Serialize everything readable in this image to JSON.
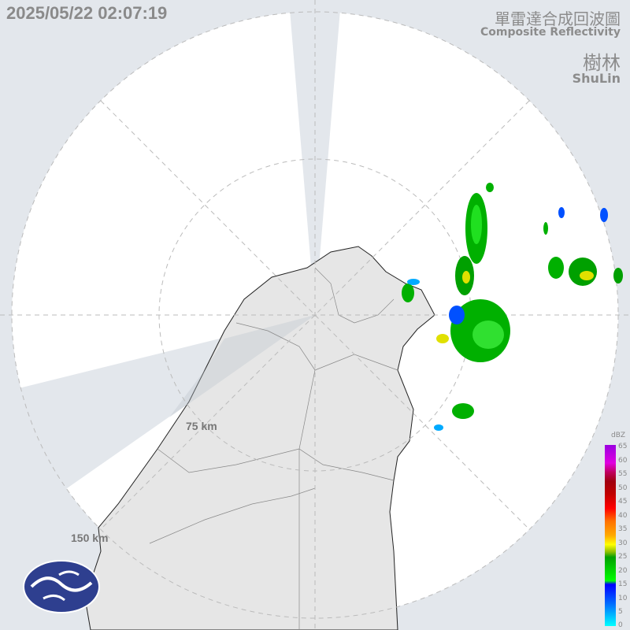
{
  "header": {
    "timestamp": "2025/05/22 02:07:19",
    "product_zh": "單雷達合成回波圖",
    "product_en": "Composite Reflectivity",
    "station_zh": "樹林",
    "station_en": "ShuLin"
  },
  "range_rings": [
    "75 km",
    "150 km"
  ],
  "legend": {
    "unit": "dBZ",
    "ticks": [
      "65",
      "60",
      "55",
      "50",
      "45",
      "40",
      "35",
      "30",
      "25",
      "20",
      "15",
      "10",
      "5",
      "0"
    ]
  },
  "colors": {
    "background": "#e3e7ec",
    "coverage": "#ffffff",
    "land": "#e6e6e6",
    "logo": "#2e3f8f"
  },
  "logo_icon": "cwa-logo"
}
